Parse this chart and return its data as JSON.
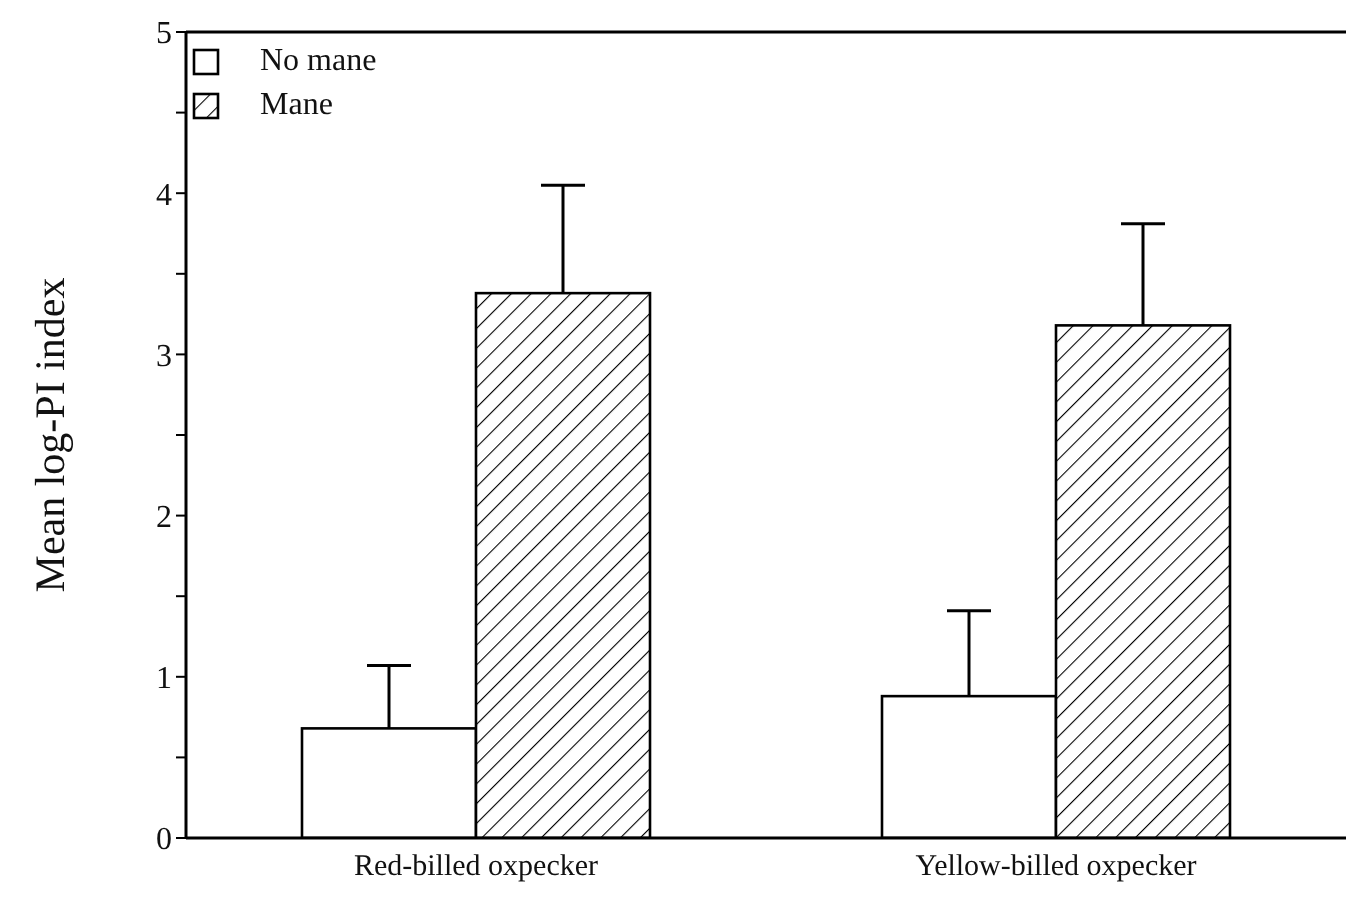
{
  "chart_data": {
    "type": "bar",
    "ylabel": "Mean log-PI index",
    "categories": [
      "Red-billed oxpecker",
      "Yellow-billed oxpecker"
    ],
    "series": [
      {
        "name": "No mane",
        "color": "#ffffff",
        "values": [
          0.68,
          0.88
        ],
        "errors": [
          [
            0.68,
            1.07
          ],
          [
            0.88,
            1.41
          ]
        ]
      },
      {
        "name": "Mane",
        "color": "#000000",
        "values": [
          3.38,
          3.18
        ],
        "errors": [
          [
            3.38,
            4.05
          ],
          [
            3.18,
            3.81
          ]
        ]
      }
    ],
    "ylim": [
      0,
      5
    ],
    "yticks": [
      0,
      {
        "value": 0.5,
        "label": null
      },
      1,
      {
        "value": 1.5,
        "label": null
      },
      2,
      {
        "value": 2.5,
        "label": null
      },
      3,
      {
        "value": 3.5,
        "label": null
      },
      4,
      {
        "value": 4.5,
        "label": null
      },
      5
    ],
    "grid": false,
    "legend": "top left"
  }
}
